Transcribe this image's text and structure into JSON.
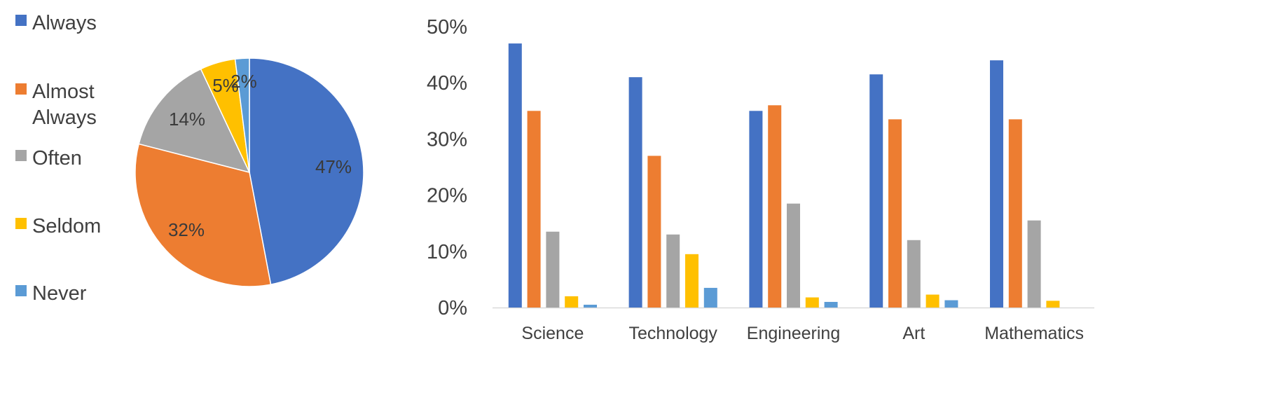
{
  "legend": {
    "items": [
      {
        "label": "Always",
        "color": "#4472C4"
      },
      {
        "label": "Almost Always",
        "label_lines": [
          "Almost",
          "Always"
        ],
        "color": "#ED7D31"
      },
      {
        "label": "Often",
        "color": "#A5A5A5"
      },
      {
        "label": "Seldom",
        "color": "#FFC000"
      },
      {
        "label": "Never",
        "color": "#5B9BD5"
      }
    ]
  },
  "chart_data": [
    {
      "type": "pie",
      "categories": [
        "Always",
        "Almost Always",
        "Often",
        "Seldom",
        "Never"
      ],
      "values": [
        47,
        32,
        14,
        5,
        2
      ],
      "data_labels": [
        "47%",
        "32%",
        "14%",
        "5%",
        "2%"
      ],
      "colors": [
        "#4472C4",
        "#ED7D31",
        "#A5A5A5",
        "#FFC000",
        "#5B9BD5"
      ],
      "legend": "left"
    },
    {
      "type": "bar",
      "categories": [
        "Science",
        "Technology",
        "Engineering",
        "Art",
        "Mathematics"
      ],
      "series": [
        {
          "name": "Always",
          "color": "#4472C4",
          "values": [
            47,
            41,
            35,
            41.5,
            44
          ]
        },
        {
          "name": "Almost Always",
          "color": "#ED7D31",
          "values": [
            35,
            27,
            36,
            33.5,
            33.5
          ]
        },
        {
          "name": "Often",
          "color": "#A5A5A5",
          "values": [
            13.5,
            13,
            18.5,
            12,
            15.5
          ]
        },
        {
          "name": "Seldom",
          "color": "#FFC000",
          "values": [
            2,
            9.5,
            1.8,
            2.3,
            1.2
          ]
        },
        {
          "name": "Never",
          "color": "#5B9BD5",
          "values": [
            0.5,
            3.5,
            1,
            1.3,
            0
          ]
        }
      ],
      "ylim": [
        0,
        50
      ],
      "yticks": [
        "0%",
        "10%",
        "20%",
        "30%",
        "40%",
        "50%"
      ],
      "grid": false
    }
  ]
}
